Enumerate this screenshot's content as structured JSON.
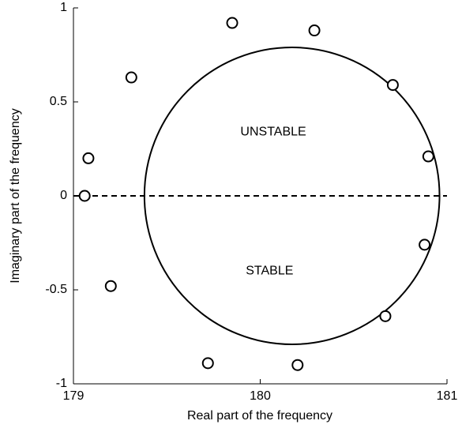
{
  "chart_data": {
    "type": "scatter",
    "xlabel": "Real part of the frequency",
    "ylabel": "Imaginary part of the frequency",
    "x": [
      179.06,
      179.08,
      179.31,
      179.2,
      179.72,
      179.85,
      180.2,
      180.29,
      180.71,
      180.9,
      180.88,
      180.67
    ],
    "values": [
      0,
      0.2,
      0.63,
      -0.48,
      -0.89,
      0.92,
      -0.9,
      0.88,
      0.59,
      0.21,
      -0.26,
      -0.64
    ],
    "color": "#000000",
    "circle": {
      "center": [
        180.17,
        0
      ],
      "radius": 0.79
    },
    "reference_line": 0,
    "annotations": [
      {
        "text": "UNSTABLE",
        "x": 180.07,
        "y": 0.34
      },
      {
        "text": "STABLE",
        "x": 180.05,
        "y": -0.4
      }
    ],
    "xlim": [
      179,
      181
    ],
    "xticks": [
      179,
      180,
      181
    ],
    "ylim": [
      -1,
      1
    ],
    "yticks": [
      -1,
      -0.5,
      0,
      0.5,
      1
    ]
  }
}
